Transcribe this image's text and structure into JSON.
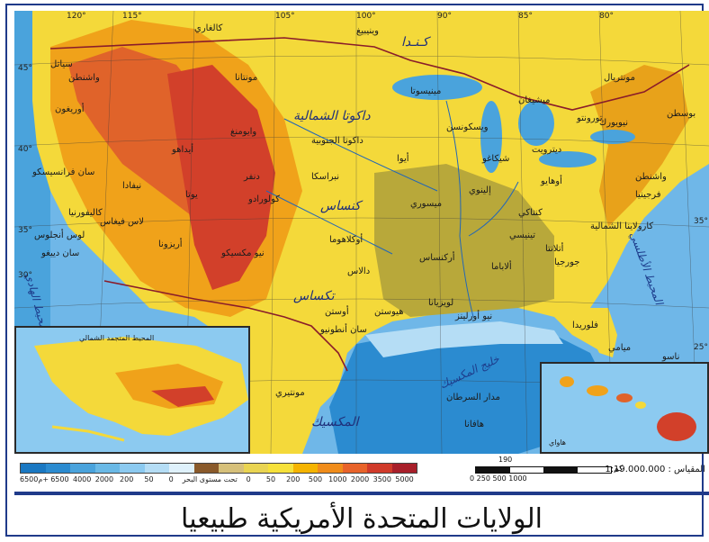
{
  "title": "الولايات المتحدة الأمريكية طبيعيا",
  "legend": {
    "values": [
      "6500م+",
      "6500",
      "4000",
      "2000",
      "200",
      "50",
      "0",
      "تحت مستوى البحر",
      "0",
      "50",
      "200",
      "500",
      "1000",
      "2000",
      "3500",
      "5000"
    ],
    "colors": [
      "#1a78c2",
      "#2b8bd0",
      "#4aa3dc",
      "#6ab9e6",
      "#8ccaf0",
      "#b5ddf5",
      "#dff1fb",
      "#8a5a2b",
      "#d6c07a",
      "#e9d452",
      "#f6e13a",
      "#f5b400",
      "#f08c1a",
      "#e8632a",
      "#d03a2a",
      "#a81f2a"
    ]
  },
  "scale": {
    "label": "المقياس : 1:19.000.000",
    "top": "190",
    "ticks": "0        250        500        1000",
    "unit": "كم"
  },
  "labels": {
    "canada": "كـنـدا",
    "gulf_mexico": "خليج المكسيك",
    "atlantic": "المحيط الأطلسي",
    "pacific": "المحيط الهادي",
    "mexico": "المكسيك",
    "texas": "تكساس",
    "kansas": "كنساس",
    "montana": "مونتانا",
    "nevada": "نيفادا",
    "utah": "يوتا",
    "colorado": "كولورادو",
    "arizona": "أريزونا",
    "new_mexico": "نيو مكسيكو",
    "oklahoma": "أوكلاهوما",
    "nebraska": "نبراسكا",
    "iowa": "أيوا",
    "missouri": "ميسوري",
    "illinois": "إلينوي",
    "ohio": "أوهايو",
    "georgia": "جورجيا",
    "florida": "فلوريدا",
    "california": "كاليفورنيا",
    "oregon": "أوريغون",
    "washington": "واشنطن",
    "idaho": "أيداهو",
    "wyoming": "وايومنغ",
    "dakota_n": "داكوتا الشمالية",
    "dakota_s": "داكوتا الجنوبية",
    "minnesota": "مينيسوتا",
    "wisconsin": "ويسكونسن",
    "michigan": "ميشيغان",
    "new_york": "نيويورك",
    "virginia": "فرجينيا",
    "carolina": "كارولاينا الشمالية",
    "tennessee": "تينيسي",
    "alabama": "ألاباما",
    "louisiana": "لويزيانا",
    "arkansas": "أركنساس",
    "kentucky": "كنتاكي",
    "los_angeles": "لوس أنجلوس",
    "san_diego": "سان دييغو",
    "san_francisco": "سان فرانسيسكو",
    "las_vegas": "لاس فيغاس",
    "seattle": "سياتل",
    "denver": "دنفر",
    "dallas": "دالاس",
    "houston": "هيوستن",
    "austin": "أوستن",
    "san_antonio": "سان أنطونيو",
    "new_orleans": "نيو أورلينز",
    "chicago": "شيكاغو",
    "detroit": "ديترويت",
    "atlanta": "أتلانتا",
    "miami": "ميامي",
    "montreal": "مونتريال",
    "toronto": "تورونتو",
    "boston": "بوسطن",
    "washington_dc": "واشنطن",
    "calgary": "كالغاري",
    "winnipeg": "وينيبيغ",
    "nassau": "ناسو",
    "havana": "هافانا",
    "tropic": "مدار السرطان",
    "monterrey": "مونتيري",
    "alaska_sea": "المحيط المتجمد الشمالي",
    "hawaii": "هاواي"
  },
  "coords": [
    "120°",
    "115°",
    "110°",
    "105°",
    "100°",
    "95°",
    "90°",
    "85°",
    "80°",
    "75°",
    "45°",
    "40°",
    "35°",
    "30°",
    "25°"
  ]
}
